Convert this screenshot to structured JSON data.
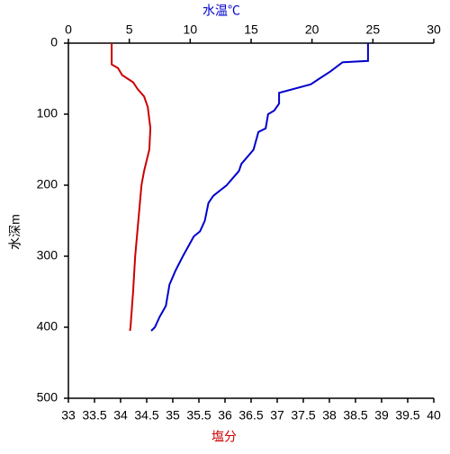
{
  "chart_data": {
    "type": "line",
    "xlabel": "塩分",
    "x2label": "水温℃",
    "ylabel": "水深m",
    "xlabel_color": "#cc0000",
    "x2label_color": "#0000cc",
    "xlim": [
      33,
      40
    ],
    "xticks": [
      33,
      33.5,
      34,
      34.5,
      35,
      35.5,
      36,
      36.5,
      37,
      37.5,
      38,
      38.5,
      39,
      39.5,
      40
    ],
    "x2lim": [
      0,
      30
    ],
    "x2ticks": [
      0,
      5,
      10,
      15,
      20,
      25,
      30
    ],
    "ylim": [
      0,
      500
    ],
    "yticks": [
      0,
      100,
      200,
      300,
      400,
      500
    ],
    "y_inverted": true,
    "series": [
      {
        "color": "#cc0000",
        "axis": "x",
        "x": [
          33.83,
          33.83,
          33.95,
          34.03,
          34.24,
          34.33,
          34.45,
          34.52,
          34.57,
          34.55,
          34.45,
          34.4,
          34.34,
          34.28,
          34.24,
          34.19,
          34.18
        ],
        "y": [
          0,
          30,
          35,
          45,
          55,
          65,
          75,
          90,
          120,
          150,
          180,
          200,
          250,
          300,
          350,
          400,
          405
        ]
      },
      {
        "color": "#0000cc",
        "axis": "x2",
        "x": [
          24.6,
          24.6,
          22.5,
          21.5,
          20.6,
          19.9,
          17.3,
          17.3,
          16.9,
          16.4,
          16.2,
          15.6,
          15.2,
          14.2,
          14.0,
          13.0,
          11.9,
          11.5,
          11.2,
          10.8,
          10.3,
          9.4,
          8.8,
          8.3,
          8.0,
          7.5,
          7.1,
          6.8
        ],
        "y": [
          0,
          25,
          27,
          40,
          50,
          58,
          70,
          85,
          95,
          100,
          120,
          125,
          150,
          170,
          180,
          200,
          215,
          225,
          250,
          265,
          272,
          300,
          320,
          340,
          370,
          385,
          400,
          405
        ]
      }
    ]
  }
}
